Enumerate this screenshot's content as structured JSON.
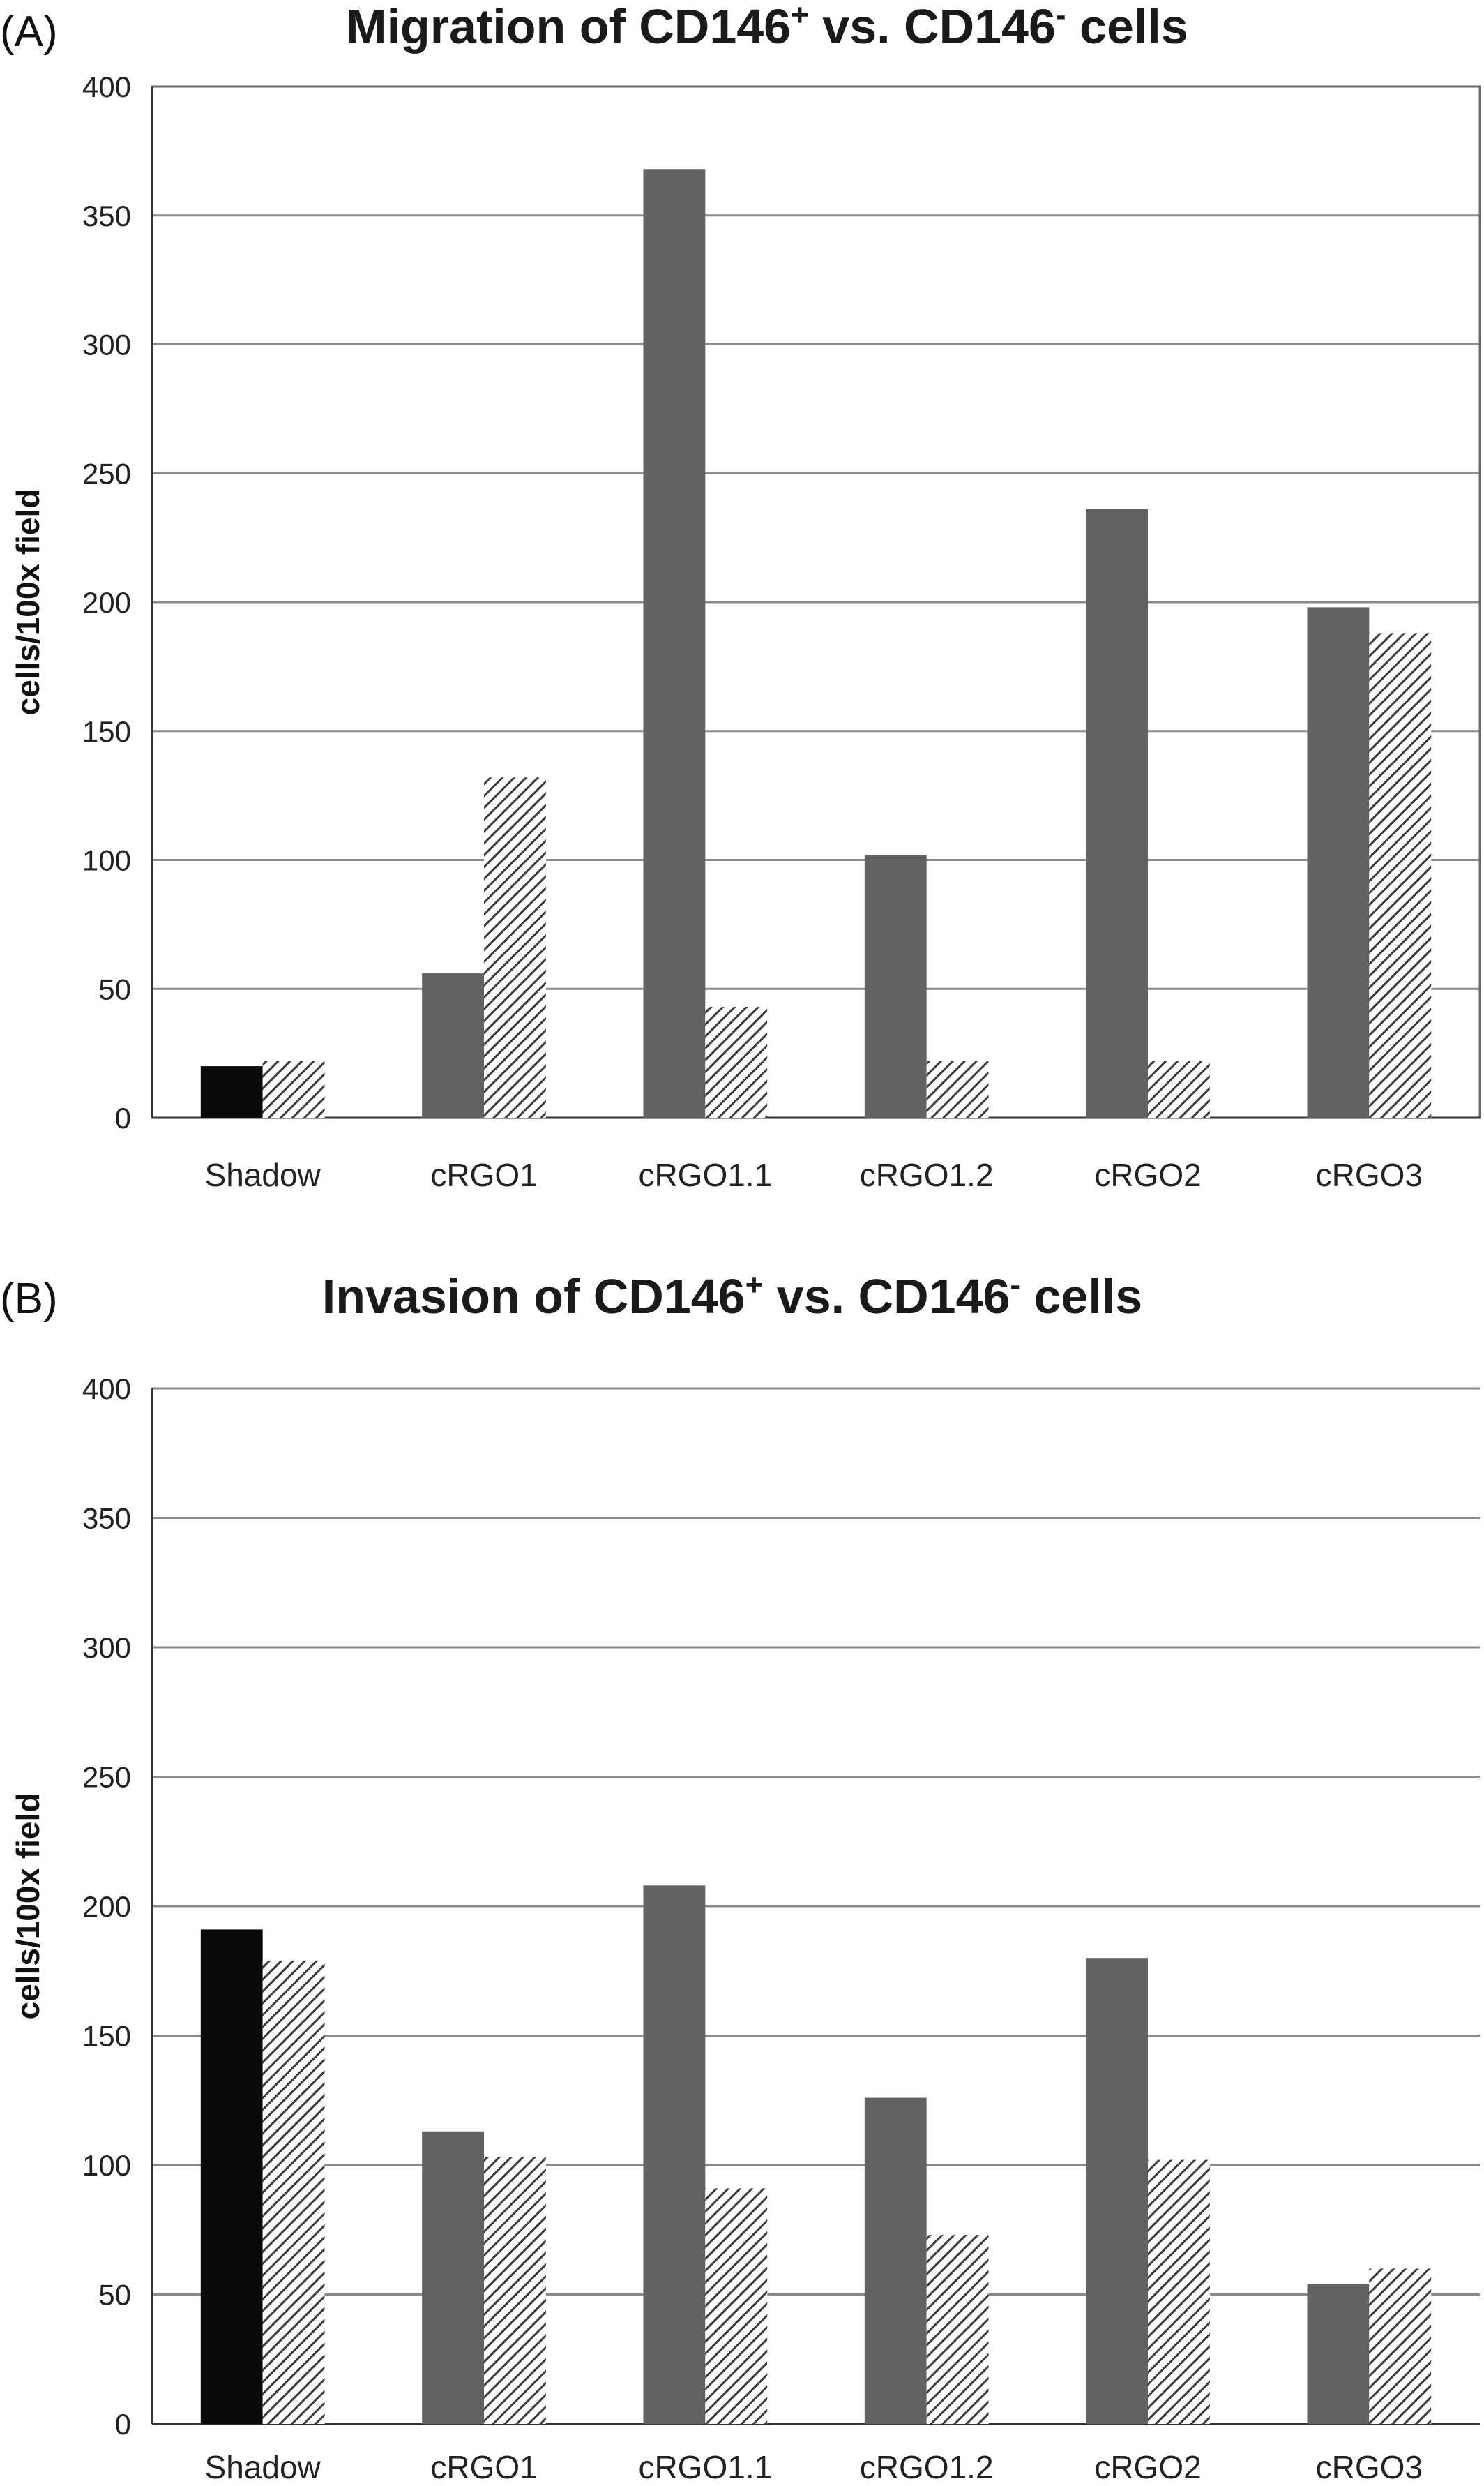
{
  "chart_data": [
    {
      "panel_label": "(A)",
      "type": "bar",
      "title": {
        "prefix": "Migration of CD146",
        "sup1": "+",
        "middle": " vs. CD146",
        "sup2": "-",
        "suffix": " cells"
      },
      "xlabel": "",
      "ylabel": "cells/100x field",
      "ylim": [
        0,
        400
      ],
      "yticks": [
        0,
        50,
        100,
        150,
        200,
        250,
        300,
        350,
        400
      ],
      "grid": true,
      "legend": "none",
      "categories": [
        "Shadow",
        "cRGO1",
        "cRGO1.1",
        "cRGO1.2",
        "cRGO2",
        "cRGO3"
      ],
      "series": [
        {
          "values": [
            20,
            56,
            368,
            102,
            236,
            198
          ],
          "style": "solid"
        },
        {
          "values": [
            22,
            132,
            43,
            22,
            22,
            188
          ],
          "style": "hatched"
        }
      ]
    },
    {
      "panel_label": "(B)",
      "type": "bar",
      "title": {
        "prefix": "Invasion of CD146",
        "sup1": "+",
        "middle": " vs. CD146",
        "sup2": "-",
        "suffix": " cells"
      },
      "xlabel": "",
      "ylabel": "cells/100x field",
      "ylim": [
        0,
        400
      ],
      "yticks": [
        0,
        50,
        100,
        150,
        200,
        250,
        300,
        350,
        400
      ],
      "grid": true,
      "legend": "none",
      "categories": [
        "Shadow",
        "cRGO1",
        "cRGO1.1",
        "cRGO1.2",
        "cRGO2",
        "cRGO3"
      ],
      "series": [
        {
          "values": [
            191,
            113,
            208,
            126,
            180,
            54
          ],
          "style": "solid"
        },
        {
          "values": [
            179,
            103,
            91,
            73,
            102,
            60
          ],
          "style": "hatched"
        }
      ]
    }
  ],
  "colors": {
    "solid_control": "#0a0a0a",
    "solid_bar": "#626262",
    "hatch_stroke": "#3a3a3a",
    "hatch_bg": "#ffffff",
    "grid": "#8a8a8a"
  }
}
